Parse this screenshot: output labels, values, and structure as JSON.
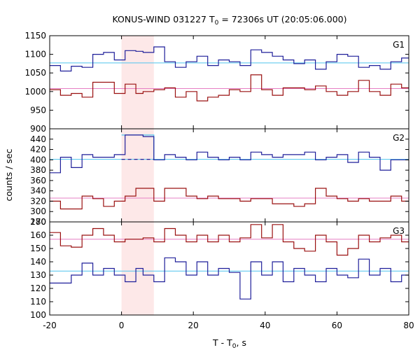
{
  "chart_data": {
    "type": "line",
    "title": "KONUS-WIND 031227 T",
    "title_sub": "0",
    "title_rest": " = 72306s UT (20:05:06.000)",
    "xlabel": "T - T",
    "xlabel_sub": "0",
    "xlabel_rest": ", s",
    "ylabel": "counts / sec",
    "xlim": [
      -20,
      80
    ],
    "xticks": [
      "-20",
      "0",
      "20",
      "40",
      "60",
      "80"
    ],
    "highlight_interval": [
      0,
      9
    ],
    "highlight_color": "#fde8e8",
    "step_edges": [
      -20,
      -17,
      -14,
      -11,
      -8,
      -5,
      -2,
      1,
      4,
      6,
      9,
      12,
      15,
      18,
      21,
      24,
      27,
      30,
      33,
      36,
      39,
      42,
      45,
      48,
      51,
      54,
      57,
      60,
      63,
      66,
      69,
      72,
      75,
      78,
      80
    ],
    "panels": [
      {
        "name": "G1",
        "ylim": [
          900,
          1150
        ],
        "yticks": [
          900,
          950,
          1000,
          1050,
          1100,
          1150
        ],
        "show_top_tick": true,
        "series": [
          {
            "color": "#1f1f9a",
            "values": [
              1070,
              1055,
              1068,
              1065,
              1100,
              1105,
              1085,
              1110,
              1108,
              1105,
              1120,
              1080,
              1065,
              1080,
              1095,
              1070,
              1085,
              1080,
              1070,
              1112,
              1105,
              1095,
              1085,
              1075,
              1085,
              1060,
              1080,
              1100,
              1095,
              1065,
              1070,
              1060,
              1080,
              1090
            ]
          },
          {
            "color": "#9a1010",
            "values": [
              1005,
              990,
              995,
              985,
              1025,
              1025,
              995,
              1020,
              995,
              1000,
              1005,
              1010,
              985,
              1000,
              975,
              985,
              990,
              1005,
              1000,
              1045,
              1005,
              990,
              1010,
              1010,
              1005,
              1015,
              1000,
              990,
              1000,
              1030,
              1000,
              990,
              1020,
              1010
            ]
          }
        ],
        "baselines": [
          {
            "color": "#4fc4ee",
            "value": 1077
          },
          {
            "color": "#e67fc4",
            "value": 1008
          }
        ]
      },
      {
        "name": "G2",
        "ylim": [
          280,
          460
        ],
        "yticks": [
          280,
          300,
          320,
          340,
          360,
          380,
          400,
          420,
          440,
          460
        ],
        "show_top_tick": false,
        "series": [
          {
            "color": "#1f1f9a",
            "values": [
              375,
              405,
              385,
              410,
              405,
              405,
              410,
              448,
              448,
              445,
              400,
              410,
              405,
              400,
              415,
              405,
              400,
              405,
              400,
              415,
              410,
              405,
              410,
              410,
              415,
              400,
              405,
              410,
              395,
              415,
              405,
              380,
              400,
              400
            ]
          },
          {
            "color": "#9a1010",
            "values": [
              320,
              305,
              305,
              330,
              325,
              310,
              320,
              330,
              345,
              345,
              320,
              345,
              345,
              330,
              325,
              330,
              325,
              325,
              320,
              325,
              325,
              315,
              315,
              310,
              315,
              345,
              330,
              325,
              320,
              325,
              320,
              320,
              330,
              320
            ]
          }
        ],
        "baselines": [
          {
            "color": "#4fc4ee",
            "value": 401
          },
          {
            "color": "#e67fc4",
            "value": 326
          }
        ],
        "overlay": {
          "color": "#4fc4ee",
          "x": [
            0,
            9
          ],
          "value": 448
        }
      },
      {
        "name": "G3",
        "ylim": [
          100,
          170
        ],
        "yticks": [
          100,
          110,
          120,
          130,
          140,
          150,
          160,
          170
        ],
        "show_top_tick": true,
        "series": [
          {
            "color": "#9a1010",
            "values": [
              162,
              152,
              151,
              160,
              165,
              160,
              155,
              157,
              157,
              158,
              155,
              165,
              160,
              155,
              160,
              155,
              160,
              155,
              158,
              168,
              158,
              168,
              155,
              150,
              148,
              160,
              155,
              145,
              150,
              160,
              155,
              158,
              160,
              155
            ]
          },
          {
            "color": "#1f1f9a",
            "values": [
              124,
              124,
              130,
              139,
              130,
              135,
              130,
              125,
              135,
              130,
              125,
              143,
              140,
              130,
              140,
              130,
              135,
              132,
              112,
              140,
              130,
              140,
              125,
              135,
              130,
              125,
              135,
              130,
              128,
              142,
              130,
              135,
              125,
              130
            ]
          }
        ],
        "baselines": [
          {
            "color": "#e67fc4",
            "value": 157
          },
          {
            "color": "#4fc4ee",
            "value": 133
          }
        ]
      }
    ]
  }
}
